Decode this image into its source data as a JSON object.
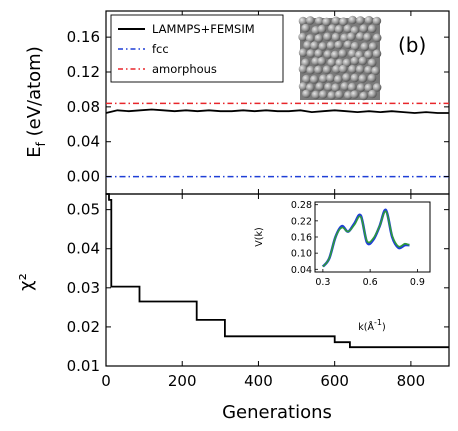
{
  "panel_label": "(b)",
  "chart_data": [
    {
      "type": "line",
      "ylabel_main": "E",
      "ylabel_sub": "f",
      "ylabel_unit": " (eV/atom)",
      "xlim": [
        0,
        900
      ],
      "ylim": [
        -0.02,
        0.19
      ],
      "yticks": [
        0.0,
        0.04,
        0.08,
        0.12,
        0.16
      ],
      "ytick_labels": [
        "0.00",
        "0.04",
        "0.08",
        "0.12",
        "0.16"
      ],
      "legend_position": "top-left",
      "series": [
        {
          "name": "LAMMPS+FEMSIM",
          "style": "solid",
          "color": "#000000",
          "x": [
            0,
            30,
            60,
            90,
            120,
            150,
            180,
            210,
            240,
            270,
            300,
            330,
            360,
            390,
            420,
            450,
            480,
            510,
            540,
            570,
            600,
            630,
            660,
            690,
            720,
            750,
            780,
            810,
            840,
            870,
            900
          ],
          "y": [
            0.073,
            0.076,
            0.075,
            0.076,
            0.077,
            0.076,
            0.075,
            0.076,
            0.075,
            0.076,
            0.075,
            0.075,
            0.076,
            0.075,
            0.076,
            0.075,
            0.075,
            0.076,
            0.074,
            0.075,
            0.076,
            0.075,
            0.074,
            0.075,
            0.074,
            0.075,
            0.074,
            0.073,
            0.074,
            0.073,
            0.073
          ]
        },
        {
          "name": "fcc",
          "style": "dash-dot",
          "color": "#1f3fd6",
          "x": [
            0,
            900
          ],
          "y": [
            0.0,
            0.0
          ]
        },
        {
          "name": "amorphous",
          "style": "dash-dot",
          "color": "#e8262b",
          "x": [
            0,
            900
          ],
          "y": [
            0.084,
            0.084
          ]
        }
      ],
      "inset_image": "atom-cluster"
    },
    {
      "type": "line",
      "xlabel": "Generations",
      "ylabel": "χ²",
      "xlim": [
        0,
        900
      ],
      "ylim": [
        0.01,
        0.054
      ],
      "xticks": [
        0,
        200,
        400,
        600,
        800
      ],
      "xtick_labels": [
        "0",
        "200",
        "400",
        "600",
        "800"
      ],
      "yticks": [
        0.01,
        0.02,
        0.03,
        0.04,
        0.05
      ],
      "ytick_labels": [
        "0.01",
        "0.02",
        "0.03",
        "0.04",
        "0.05"
      ],
      "series": [
        {
          "name": "",
          "style": "step",
          "color": "#000000",
          "x": [
            0,
            8,
            8,
            14,
            14,
            88,
            88,
            238,
            238,
            312,
            312,
            600,
            600,
            640,
            640,
            900
          ],
          "y": [
            0.054,
            0.054,
            0.0525,
            0.0525,
            0.0303,
            0.0303,
            0.0265,
            0.0265,
            0.0218,
            0.0218,
            0.0176,
            0.0176,
            0.0161,
            0.0161,
            0.0148,
            0.0148
          ]
        }
      ],
      "inset": {
        "type": "line",
        "xlabel": "k(Å",
        "xlabel_sup": "-1",
        "xlabel_end": ")",
        "ylabel": "V(k)",
        "xlim": [
          0.25,
          0.98
        ],
        "ylim": [
          0.03,
          0.29
        ],
        "xticks": [
          0.3,
          0.6,
          0.9
        ],
        "xtick_labels": [
          "0.3",
          "0.6",
          "0.9"
        ],
        "yticks": [
          0.04,
          0.1,
          0.16,
          0.22,
          0.28
        ],
        "ytick_labels": [
          "0.04",
          "0.10",
          "0.16",
          "0.22",
          "0.28"
        ],
        "series": [
          {
            "name": "",
            "color": "#1f3fd6",
            "x": [
              0.3,
              0.34,
              0.38,
              0.42,
              0.46,
              0.5,
              0.54,
              0.58,
              0.62,
              0.66,
              0.7,
              0.74,
              0.78,
              0.82,
              0.85
            ],
            "y": [
              0.05,
              0.08,
              0.16,
              0.2,
              0.18,
              0.21,
              0.24,
              0.14,
              0.15,
              0.2,
              0.26,
              0.16,
              0.12,
              0.13,
              0.13
            ]
          },
          {
            "name": "",
            "color": "#2e9b3a",
            "x": [
              0.3,
              0.34,
              0.38,
              0.42,
              0.46,
              0.5,
              0.54,
              0.58,
              0.62,
              0.66,
              0.7,
              0.74,
              0.78,
              0.82,
              0.85
            ],
            "y": [
              0.05,
              0.08,
              0.16,
              0.195,
              0.18,
              0.205,
              0.235,
              0.145,
              0.155,
              0.2,
              0.255,
              0.165,
              0.125,
              0.135,
              0.13
            ]
          }
        ]
      }
    }
  ]
}
